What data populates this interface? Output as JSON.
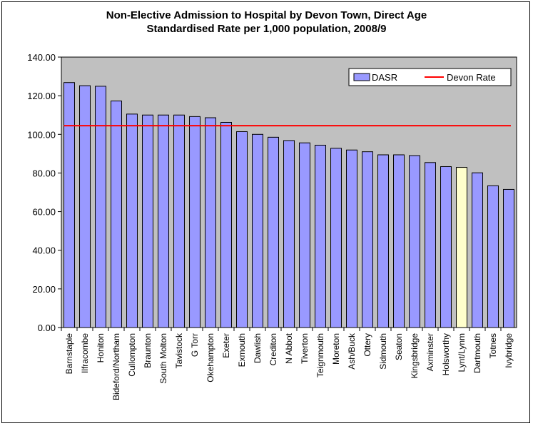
{
  "chart_data": {
    "type": "bar",
    "title_line1": "Non-Elective Admission to Hospital by Devon Town, Direct Age",
    "title_line2": "Standardised Rate per 1,000 population, 2008/9",
    "categories": [
      "Barnstaple",
      "Ilfracombe",
      "Honiton",
      "Bideford/Northam",
      "Cullompton",
      "Braunton",
      "South Molton",
      "Tavistock",
      "G Torr",
      "Okehampton",
      "Exeter",
      "Exmouth",
      "Dawlish",
      "Crediton",
      "N Abbot",
      "Tiverton",
      "Teignmouth",
      "Moreton",
      "Ash/Buck",
      "Ottery",
      "Sidmouth",
      "Seaton",
      "Kingsbridge",
      "Axminster",
      "Holsworthy",
      "Lynt/Lynm",
      "Dartmouth",
      "Totnes",
      "Ivybridge"
    ],
    "series": [
      {
        "name": "DASR",
        "values": [
          126.8,
          125.2,
          124.9,
          117.3,
          110.5,
          110.0,
          110.0,
          110.0,
          109.2,
          108.6,
          106.2,
          101.4,
          100.0,
          98.5,
          96.8,
          95.6,
          94.4,
          92.8,
          91.9,
          91.0,
          89.4,
          89.4,
          89.0,
          85.4,
          83.3,
          82.9,
          80.1,
          73.4,
          71.5
        ],
        "color": "#9999ff"
      },
      {
        "name": "Devon Rate",
        "value": 104.5,
        "color": "#ff0000"
      }
    ],
    "highlight_category": "Lynt/Lynm",
    "highlight_color": "#ffffcc",
    "plot_background": "#c0c0c0",
    "ylim": [
      0,
      140
    ],
    "y_ticks": [
      "0.00",
      "20.00",
      "40.00",
      "60.00",
      "80.00",
      "100.00",
      "120.00",
      "140.00"
    ],
    "legend_position": "top-right",
    "grid": false
  }
}
